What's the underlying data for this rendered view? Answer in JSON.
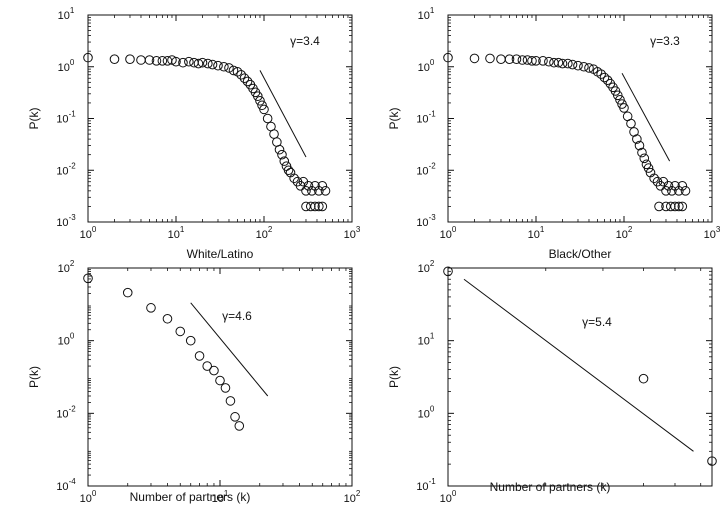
{
  "chart_data": [
    {
      "type": "scatter",
      "title": "",
      "xlabel": "",
      "ylabel": "P(k)",
      "xscale": "log",
      "yscale": "log",
      "xlim": [
        1,
        1000
      ],
      "ylim": [
        0.001,
        10
      ],
      "xticks": [
        1,
        10,
        100,
        1000
      ],
      "yticks": [
        0.001,
        0.01,
        0.1,
        1,
        10
      ],
      "fit_label": "γ=3.4",
      "fit_line": [
        [
          90,
          0.85
        ],
        [
          300,
          0.018
        ]
      ],
      "series": [
        {
          "x": [
            1,
            2,
            3,
            4,
            5,
            6,
            7,
            8,
            9,
            10,
            12,
            14,
            16,
            18,
            20,
            23,
            26,
            30,
            35,
            40,
            45,
            50,
            55,
            60,
            65,
            70,
            75,
            80,
            85,
            90,
            95,
            100,
            110,
            120,
            130,
            140,
            150,
            160,
            170,
            180,
            190,
            200,
            220,
            240,
            260,
            280,
            300,
            320,
            350,
            380,
            420,
            460,
            500,
            300,
            340,
            380,
            420,
            460
          ],
          "y": [
            1.5,
            1.4,
            1.4,
            1.35,
            1.35,
            1.3,
            1.3,
            1.3,
            1.35,
            1.25,
            1.2,
            1.25,
            1.2,
            1.15,
            1.2,
            1.15,
            1.1,
            1.05,
            1.0,
            0.95,
            0.85,
            0.8,
            0.7,
            0.6,
            0.52,
            0.45,
            0.38,
            0.32,
            0.27,
            0.22,
            0.18,
            0.15,
            0.1,
            0.07,
            0.05,
            0.035,
            0.025,
            0.02,
            0.015,
            0.012,
            0.01,
            0.009,
            0.007,
            0.006,
            0.005,
            0.006,
            0.004,
            0.005,
            0.004,
            0.005,
            0.004,
            0.005,
            0.004,
            0.002,
            0.002,
            0.002,
            0.002,
            0.002
          ]
        }
      ]
    },
    {
      "type": "scatter",
      "title": "",
      "xlabel": "",
      "ylabel": "P(k)",
      "xscale": "log",
      "yscale": "log",
      "xlim": [
        1,
        1000
      ],
      "ylim": [
        0.001,
        10
      ],
      "xticks": [
        1,
        10,
        100,
        1000
      ],
      "yticks": [
        0.001,
        0.01,
        0.1,
        1,
        10
      ],
      "fit_label": "γ=3.3",
      "fit_line": [
        [
          95,
          0.75
        ],
        [
          330,
          0.015
        ]
      ],
      "series": [
        {
          "x": [
            1,
            2,
            3,
            4,
            5,
            6,
            7,
            8,
            9,
            10,
            12,
            14,
            16,
            18,
            20,
            23,
            26,
            30,
            35,
            40,
            45,
            50,
            55,
            60,
            65,
            70,
            75,
            80,
            85,
            90,
            95,
            100,
            110,
            120,
            130,
            140,
            150,
            160,
            170,
            180,
            190,
            200,
            220,
            240,
            260,
            280,
            300,
            320,
            350,
            380,
            420,
            460,
            500,
            250,
            300,
            340,
            380,
            420,
            460
          ],
          "y": [
            1.5,
            1.45,
            1.45,
            1.4,
            1.4,
            1.4,
            1.35,
            1.35,
            1.3,
            1.3,
            1.3,
            1.25,
            1.2,
            1.2,
            1.15,
            1.15,
            1.1,
            1.05,
            1.0,
            0.95,
            0.9,
            0.8,
            0.72,
            0.62,
            0.55,
            0.47,
            0.4,
            0.34,
            0.28,
            0.23,
            0.19,
            0.16,
            0.11,
            0.08,
            0.055,
            0.04,
            0.03,
            0.022,
            0.017,
            0.013,
            0.011,
            0.009,
            0.007,
            0.006,
            0.005,
            0.006,
            0.004,
            0.005,
            0.004,
            0.005,
            0.004,
            0.005,
            0.004,
            0.002,
            0.002,
            0.002,
            0.002,
            0.002,
            0.002
          ]
        }
      ]
    },
    {
      "type": "scatter",
      "title": "White/Latino",
      "xlabel": "Number of partners (k)",
      "ylabel": "P(k)",
      "xscale": "log",
      "yscale": "log",
      "xlim": [
        1,
        100
      ],
      "ylim": [
        0.0001,
        100
      ],
      "xticks": [
        1,
        10,
        100
      ],
      "yticks": [
        0.0001,
        0.01,
        1,
        100
      ],
      "fit_label": "γ=4.6",
      "fit_line": [
        [
          6,
          11
        ],
        [
          23,
          0.03
        ]
      ],
      "series": [
        {
          "x": [
            1,
            2,
            3,
            4,
            5,
            6,
            7,
            8,
            9,
            10,
            11,
            12,
            13,
            14
          ],
          "y": [
            52,
            21,
            8,
            4,
            1.8,
            1.0,
            0.38,
            0.2,
            0.15,
            0.08,
            0.05,
            0.022,
            0.008,
            0.0045
          ]
        }
      ]
    },
    {
      "type": "scatter",
      "title": "Black/Other",
      "xlabel": "Number of partners (k)",
      "ylabel": "P(k)",
      "xscale": "log",
      "yscale": "log",
      "xlim": [
        1,
        6.5
      ],
      "ylim": [
        0.1,
        100
      ],
      "xticks": [
        1
      ],
      "yticks": [
        0.1,
        1,
        10,
        100
      ],
      "fit_label": "γ=5.4",
      "fit_line": [
        [
          1.12,
          70
        ],
        [
          5.7,
          0.3
        ]
      ],
      "series": [
        {
          "x": [
            1,
            4,
            6.5
          ],
          "y": [
            90,
            3,
            0.22
          ]
        }
      ]
    }
  ]
}
